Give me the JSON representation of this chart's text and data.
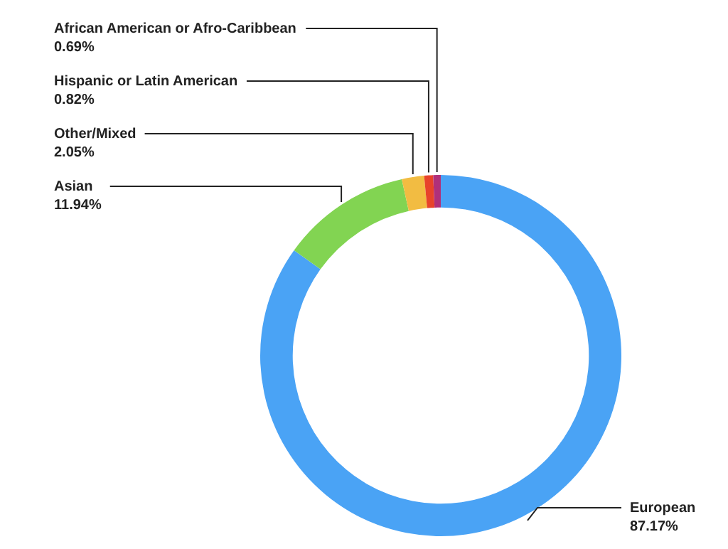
{
  "chart_data": {
    "type": "donut",
    "categories": [
      "European",
      "Asian",
      "Other/Mixed",
      "Hispanic or Latin American",
      "African American or Afro-Caribbean"
    ],
    "values": [
      87.17,
      11.94,
      2.05,
      0.82,
      0.69
    ],
    "colors": [
      "#4aa3f5",
      "#82d452",
      "#f2bc42",
      "#e8432b",
      "#b0307a"
    ],
    "value_labels": [
      "87.17%",
      "11.94%",
      "2.05%",
      "0.82%",
      "0.69%"
    ],
    "legend": false
  }
}
